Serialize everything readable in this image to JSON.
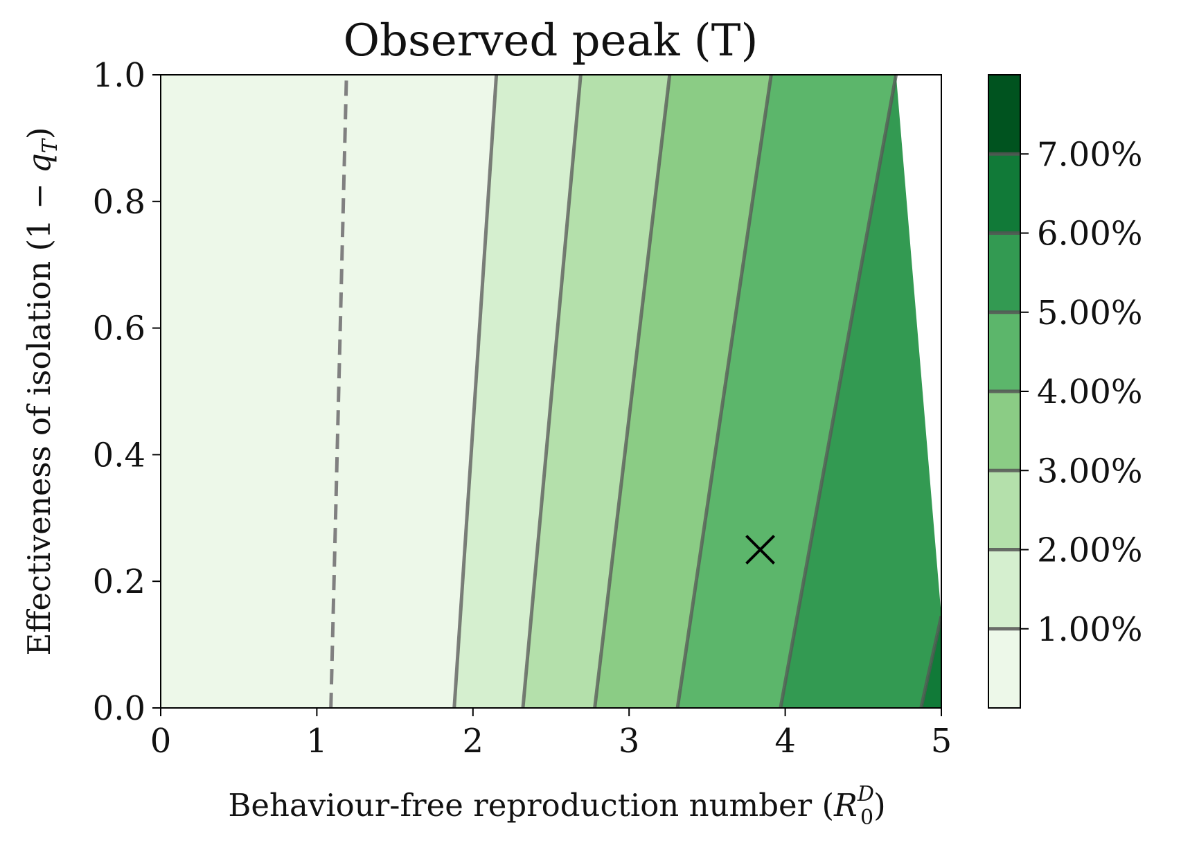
{
  "chart_data": {
    "type": "contour",
    "title": "Observed peak (T)",
    "xlabel": "Behaviour-free reproduction number (",
    "xlabel_math_symbol": "R",
    "xlabel_math_sup": "D",
    "xlabel_math_sub": "0",
    "xlabel_close": ")",
    "ylabel": "Effectiveness of isolation (1 − ",
    "ylabel_math_symbol": "q",
    "ylabel_math_sub": "T",
    "ylabel_close": ")",
    "xlim": [
      0,
      5
    ],
    "ylim": [
      0,
      1
    ],
    "x_ticks": [
      0,
      1,
      2,
      3,
      4,
      5
    ],
    "x_tick_labels": [
      "0",
      "1",
      "2",
      "3",
      "4",
      "5"
    ],
    "y_ticks": [
      0.0,
      0.2,
      0.4,
      0.6,
      0.8,
      1.0
    ],
    "y_tick_labels": [
      "0.0",
      "0.2",
      "0.4",
      "0.6",
      "0.8",
      "1.0"
    ],
    "colorbar": {
      "range": [
        0,
        8
      ],
      "levels": [
        1,
        2,
        3,
        4,
        5,
        6,
        7
      ],
      "tick_labels": [
        "1.00%",
        "2.00%",
        "3.00%",
        "4.00%",
        "5.00%",
        "6.00%",
        "7.00%"
      ]
    },
    "band_colors": [
      "#edf8e9",
      "#d5efcf",
      "#b4e0ab",
      "#8bcc85",
      "#5cb66b",
      "#339a52",
      "#117a38",
      "#00531f"
    ],
    "contours": [
      {
        "level": "threshold",
        "style": "dashed",
        "points": [
          [
            1.09,
            0.0
          ],
          [
            1.19,
            1.0
          ]
        ]
      },
      {
        "level": 1,
        "points": [
          [
            1.88,
            0.0
          ],
          [
            2.15,
            1.0
          ]
        ]
      },
      {
        "level": 2,
        "points": [
          [
            2.32,
            0.0
          ],
          [
            2.69,
            1.0
          ]
        ]
      },
      {
        "level": 3,
        "points": [
          [
            2.78,
            0.0
          ],
          [
            3.26,
            1.0
          ]
        ]
      },
      {
        "level": 4,
        "points": [
          [
            3.31,
            0.0
          ],
          [
            3.91,
            1.0
          ]
        ]
      },
      {
        "level": 5,
        "points": [
          [
            3.97,
            0.0
          ],
          [
            4.71,
            1.0
          ]
        ]
      },
      {
        "level": 6,
        "points": [
          [
            4.87,
            0.0
          ],
          [
            5.0,
            0.145
          ]
        ]
      }
    ],
    "marker": {
      "symbol": "x",
      "x": 3.84,
      "y": 0.25
    }
  },
  "colors": {
    "contour_line": "#555555",
    "threshold_line": "#808080",
    "axis": "#000000"
  }
}
